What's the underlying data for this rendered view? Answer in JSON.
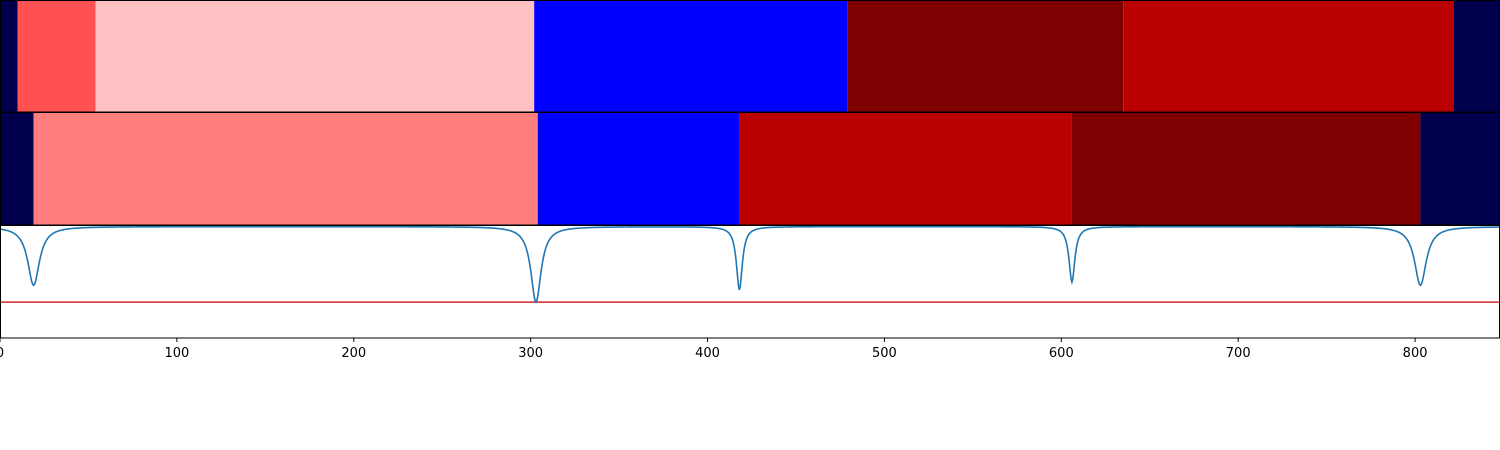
{
  "chart_data": [
    {
      "type": "segment-strip",
      "xlim": [
        0,
        848
      ],
      "segments": [
        {
          "start": 0,
          "end": 10,
          "color": "#00004c"
        },
        {
          "start": 10,
          "end": 54,
          "color": "#ff5151"
        },
        {
          "start": 54,
          "end": 302,
          "color": "#ffc1c1"
        },
        {
          "start": 302,
          "end": 479,
          "color": "#0000ff"
        },
        {
          "start": 479,
          "end": 635,
          "color": "#7f0000"
        },
        {
          "start": 635,
          "end": 822,
          "color": "#bb0000"
        },
        {
          "start": 822,
          "end": 848,
          "color": "#00004c"
        }
      ]
    },
    {
      "type": "segment-strip",
      "xlim": [
        0,
        848
      ],
      "segments": [
        {
          "start": 0,
          "end": 19,
          "color": "#00004c"
        },
        {
          "start": 19,
          "end": 304,
          "color": "#ff7f7f"
        },
        {
          "start": 304,
          "end": 418,
          "color": "#0000ff"
        },
        {
          "start": 418,
          "end": 606,
          "color": "#bb0000"
        },
        {
          "start": 606,
          "end": 803,
          "color": "#7f0000"
        },
        {
          "start": 803,
          "end": 848,
          "color": "#00004c"
        }
      ]
    },
    {
      "type": "line",
      "xlim": [
        0,
        848
      ],
      "ylim": [
        0,
        1
      ],
      "xticks": [
        0,
        100,
        200,
        300,
        400,
        500,
        600,
        700,
        800
      ],
      "threshold": {
        "value": 0.32,
        "color": "#d62728"
      },
      "line_color": "#1f77b4",
      "dips": [
        {
          "x": 19,
          "depth": 0.47,
          "width": 4
        },
        {
          "x": 303,
          "depth": 0.32,
          "width": 3.5
        },
        {
          "x": 418,
          "depth": 0.43,
          "width": 2
        },
        {
          "x": 606,
          "depth": 0.5,
          "width": 2
        },
        {
          "x": 803,
          "depth": 0.47,
          "width": 4
        }
      ],
      "baseline": 0.995
    }
  ]
}
